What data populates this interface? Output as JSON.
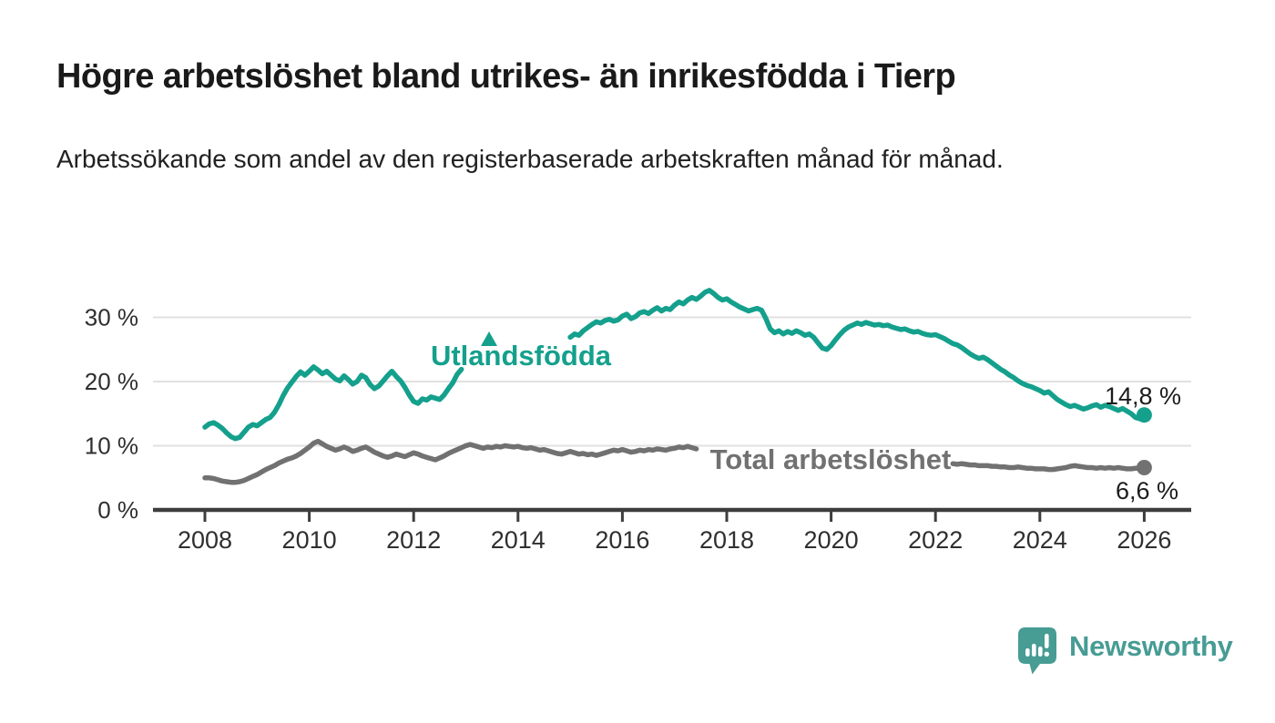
{
  "header": {
    "title": "Högre arbetslöshet bland utrikes- än inrikesfödda i Tierp",
    "subtitle": "Arbetssökande som andel av den registerbaserade arbetskraften månad för månad."
  },
  "chart_data": {
    "type": "line",
    "unit": "%",
    "frequency": "monthly",
    "start": "2008-01",
    "end": "2026-01",
    "grid": "horizontal",
    "ylim": [
      0,
      36
    ],
    "x_ticks": [
      2008,
      2010,
      2012,
      2014,
      2016,
      2018,
      2020,
      2022,
      2024,
      2026
    ],
    "y_ticks": [
      {
        "value": 0,
        "label": "0 %"
      },
      {
        "value": 10,
        "label": "10 %"
      },
      {
        "value": 20,
        "label": "20 %"
      },
      {
        "value": 30,
        "label": "30 %"
      }
    ],
    "colors": {
      "axis": "#3d3d3d",
      "gridline": "#e1e1e1",
      "tick_label": "#2f2f2f",
      "value_label": "#1c1c1c"
    },
    "series": [
      {
        "id": "utlandsfodda",
        "name": "Utlandsfödda",
        "color": "#14a08c",
        "label_marker": "triangle-up",
        "end_label": "14,8 %",
        "last_value": 14.8,
        "values": [
          12.9,
          13.4,
          13.6,
          13.2,
          12.7,
          12.0,
          11.4,
          11.1,
          11.3,
          12.1,
          12.9,
          13.3,
          13.1,
          13.6,
          14.1,
          14.4,
          15.2,
          16.4,
          17.8,
          19.0,
          19.9,
          20.8,
          21.5,
          21.0,
          21.6,
          22.3,
          21.8,
          21.2,
          21.6,
          21.0,
          20.4,
          20.1,
          20.9,
          20.3,
          19.6,
          20.0,
          21.0,
          20.6,
          19.5,
          18.9,
          19.3,
          20.1,
          20.9,
          21.6,
          20.8,
          20.1,
          19.1,
          17.9,
          16.9,
          16.6,
          17.3,
          17.1,
          17.6,
          17.4,
          17.2,
          17.9,
          18.9,
          19.8,
          21.1,
          21.9,
          null,
          null,
          null,
          null,
          null,
          null,
          null,
          null,
          null,
          null,
          null,
          null,
          null,
          null,
          null,
          null,
          null,
          null,
          null,
          null,
          null,
          null,
          null,
          null,
          26.9,
          27.4,
          27.2,
          27.9,
          28.4,
          28.9,
          29.3,
          29.1,
          29.5,
          29.7,
          29.4,
          29.6,
          30.2,
          30.5,
          29.8,
          30.1,
          30.7,
          30.9,
          30.6,
          31.1,
          31.5,
          31.0,
          31.4,
          31.2,
          31.9,
          32.4,
          32.1,
          32.7,
          33.1,
          32.8,
          33.3,
          33.9,
          34.2,
          33.7,
          33.1,
          32.7,
          32.9,
          32.4,
          32.0,
          31.6,
          31.3,
          31.0,
          31.2,
          31.4,
          31.1,
          29.8,
          28.2,
          27.6,
          27.9,
          27.4,
          27.8,
          27.5,
          27.9,
          27.6,
          27.2,
          27.4,
          26.9,
          26.0,
          25.2,
          25.0,
          25.6,
          26.5,
          27.3,
          28.0,
          28.5,
          28.8,
          29.1,
          28.9,
          29.2,
          29.0,
          28.8,
          28.9,
          28.7,
          28.8,
          28.5,
          28.3,
          28.1,
          28.2,
          27.9,
          27.7,
          27.8,
          27.5,
          27.3,
          27.2,
          27.3,
          27.0,
          26.7,
          26.3,
          25.9,
          25.7,
          25.3,
          24.8,
          24.3,
          23.9,
          23.6,
          23.8,
          23.4,
          22.9,
          22.4,
          21.9,
          21.5,
          21.0,
          20.6,
          20.1,
          19.7,
          19.4,
          19.2,
          18.9,
          18.6,
          18.2,
          18.4,
          17.8,
          17.2,
          16.8,
          16.4,
          16.1,
          16.3,
          16.0,
          15.7,
          15.9,
          16.2,
          16.4,
          16.0,
          16.3,
          16.1,
          15.8,
          15.5,
          15.8,
          15.4,
          15.0,
          14.4,
          14.2,
          14.8
        ]
      },
      {
        "id": "total",
        "name": "Total arbetslöshet",
        "color": "#717171",
        "end_label": "6,6 %",
        "last_value": 6.6,
        "values": [
          5.0,
          5.0,
          4.9,
          4.7,
          4.5,
          4.4,
          4.3,
          4.3,
          4.4,
          4.6,
          4.9,
          5.2,
          5.5,
          5.9,
          6.3,
          6.6,
          6.9,
          7.3,
          7.6,
          7.9,
          8.1,
          8.4,
          8.8,
          9.3,
          9.8,
          10.4,
          10.7,
          10.3,
          9.9,
          9.6,
          9.3,
          9.5,
          9.8,
          9.5,
          9.1,
          9.3,
          9.6,
          9.8,
          9.4,
          9.0,
          8.7,
          8.4,
          8.2,
          8.4,
          8.7,
          8.5,
          8.3,
          8.6,
          8.9,
          8.7,
          8.4,
          8.2,
          8.0,
          7.8,
          8.1,
          8.4,
          8.8,
          9.1,
          9.4,
          9.7,
          10.0,
          10.2,
          10.0,
          9.8,
          9.6,
          9.8,
          9.7,
          9.9,
          9.8,
          10.0,
          9.9,
          9.8,
          9.9,
          9.7,
          9.6,
          9.7,
          9.5,
          9.3,
          9.4,
          9.2,
          9.0,
          8.8,
          8.7,
          8.9,
          9.1,
          8.9,
          8.7,
          8.8,
          8.6,
          8.7,
          8.5,
          8.7,
          8.9,
          9.1,
          9.3,
          9.2,
          9.4,
          9.2,
          9.0,
          9.1,
          9.3,
          9.2,
          9.4,
          9.3,
          9.5,
          9.4,
          9.3,
          9.5,
          9.6,
          9.8,
          9.7,
          9.9,
          9.7,
          9.5,
          null,
          null,
          null,
          null,
          null,
          null,
          null,
          null,
          null,
          null,
          null,
          null,
          null,
          null,
          null,
          null,
          null,
          null,
          null,
          null,
          null,
          null,
          null,
          null,
          null,
          null,
          null,
          null,
          null,
          null,
          null,
          null,
          null,
          null,
          null,
          null,
          null,
          null,
          null,
          null,
          null,
          null,
          null,
          null,
          null,
          null,
          null,
          null,
          null,
          null,
          null,
          null,
          null,
          null,
          null,
          null,
          null,
          null,
          7.2,
          7.1,
          7.2,
          7.1,
          7.0,
          7.0,
          6.9,
          6.9,
          6.9,
          6.8,
          6.8,
          6.7,
          6.7,
          6.6,
          6.6,
          6.7,
          6.6,
          6.5,
          6.5,
          6.4,
          6.4,
          6.4,
          6.3,
          6.3,
          6.4,
          6.5,
          6.6,
          6.8,
          6.9,
          6.8,
          6.7,
          6.6,
          6.6,
          6.5,
          6.6,
          6.5,
          6.6,
          6.5,
          6.6,
          6.5,
          6.4,
          6.4,
          6.5,
          6.5,
          6.6
        ]
      }
    ]
  },
  "footer": {
    "brand": "Newsworthy"
  }
}
